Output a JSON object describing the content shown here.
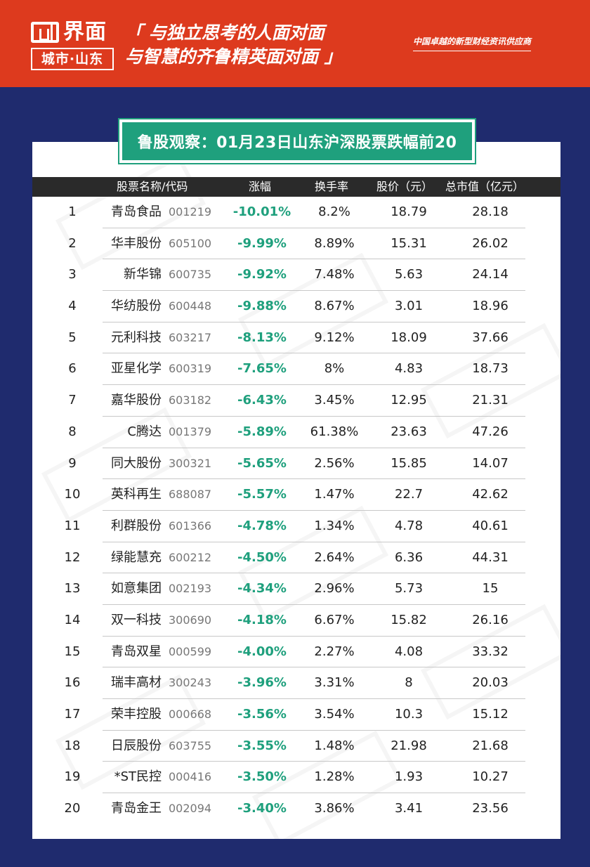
{
  "header": {
    "logo_text": "界面",
    "logo_sub": "城市·山东",
    "slogan_line1": "「 与独立思考的人面对面",
    "slogan_line2": "与智慧的齐鲁精英面对面 」",
    "tagline": "中国卓越的新型财经资讯供应商"
  },
  "title": "鲁股观察：01月23日山东沪深股票跌幅前20",
  "columns": {
    "name_code": "股票名称/代码",
    "change": "涨幅",
    "turnover": "换手率",
    "price": "股价（元）",
    "market_cap": "总市值（亿元）"
  },
  "accent_colors": {
    "header_red": "#dd3a1e",
    "background_navy": "#1f2b6e",
    "green": "#1fa07d"
  },
  "rows": [
    {
      "rank": "1",
      "name": "青岛食品",
      "code": "001219",
      "change": "-10.01%",
      "turnover": "8.2%",
      "price": "18.79",
      "cap": "28.18"
    },
    {
      "rank": "2",
      "name": "华丰股份",
      "code": "605100",
      "change": "-9.99%",
      "turnover": "8.89%",
      "price": "15.31",
      "cap": "26.02"
    },
    {
      "rank": "3",
      "name": "新华锦",
      "code": "600735",
      "change": "-9.92%",
      "turnover": "7.48%",
      "price": "5.63",
      "cap": "24.14"
    },
    {
      "rank": "4",
      "name": "华纺股份",
      "code": "600448",
      "change": "-9.88%",
      "turnover": "8.67%",
      "price": "3.01",
      "cap": "18.96"
    },
    {
      "rank": "5",
      "name": "元利科技",
      "code": "603217",
      "change": "-8.13%",
      "turnover": "9.12%",
      "price": "18.09",
      "cap": "37.66"
    },
    {
      "rank": "6",
      "name": "亚星化学",
      "code": "600319",
      "change": "-7.65%",
      "turnover": "8%",
      "price": "4.83",
      "cap": "18.73"
    },
    {
      "rank": "7",
      "name": "嘉华股份",
      "code": "603182",
      "change": "-6.43%",
      "turnover": "3.45%",
      "price": "12.95",
      "cap": "21.31"
    },
    {
      "rank": "8",
      "name": "C腾达",
      "code": "001379",
      "change": "-5.89%",
      "turnover": "61.38%",
      "price": "23.63",
      "cap": "47.26"
    },
    {
      "rank": "9",
      "name": "同大股份",
      "code": "300321",
      "change": "-5.65%",
      "turnover": "2.56%",
      "price": "15.85",
      "cap": "14.07"
    },
    {
      "rank": "10",
      "name": "英科再生",
      "code": "688087",
      "change": "-5.57%",
      "turnover": "1.47%",
      "price": "22.7",
      "cap": "42.62"
    },
    {
      "rank": "11",
      "name": "利群股份",
      "code": "601366",
      "change": "-4.78%",
      "turnover": "1.34%",
      "price": "4.78",
      "cap": "40.61"
    },
    {
      "rank": "12",
      "name": "绿能慧充",
      "code": "600212",
      "change": "-4.50%",
      "turnover": "2.64%",
      "price": "6.36",
      "cap": "44.31"
    },
    {
      "rank": "13",
      "name": "如意集团",
      "code": "002193",
      "change": "-4.34%",
      "turnover": "2.96%",
      "price": "5.73",
      "cap": "15"
    },
    {
      "rank": "14",
      "name": "双一科技",
      "code": "300690",
      "change": "-4.18%",
      "turnover": "6.67%",
      "price": "15.82",
      "cap": "26.16"
    },
    {
      "rank": "15",
      "name": "青岛双星",
      "code": "000599",
      "change": "-4.00%",
      "turnover": "2.27%",
      "price": "4.08",
      "cap": "33.32"
    },
    {
      "rank": "16",
      "name": "瑞丰高材",
      "code": "300243",
      "change": "-3.96%",
      "turnover": "3.31%",
      "price": "8",
      "cap": "20.03"
    },
    {
      "rank": "17",
      "name": "荣丰控股",
      "code": "000668",
      "change": "-3.56%",
      "turnover": "3.54%",
      "price": "10.3",
      "cap": "15.12"
    },
    {
      "rank": "18",
      "name": "日辰股份",
      "code": "603755",
      "change": "-3.55%",
      "turnover": "1.48%",
      "price": "21.98",
      "cap": "21.68"
    },
    {
      "rank": "19",
      "name": "*ST民控",
      "code": "000416",
      "change": "-3.50%",
      "turnover": "1.28%",
      "price": "1.93",
      "cap": "10.27"
    },
    {
      "rank": "20",
      "name": "青岛金王",
      "code": "002094",
      "change": "-3.40%",
      "turnover": "3.86%",
      "price": "3.41",
      "cap": "23.56"
    }
  ]
}
